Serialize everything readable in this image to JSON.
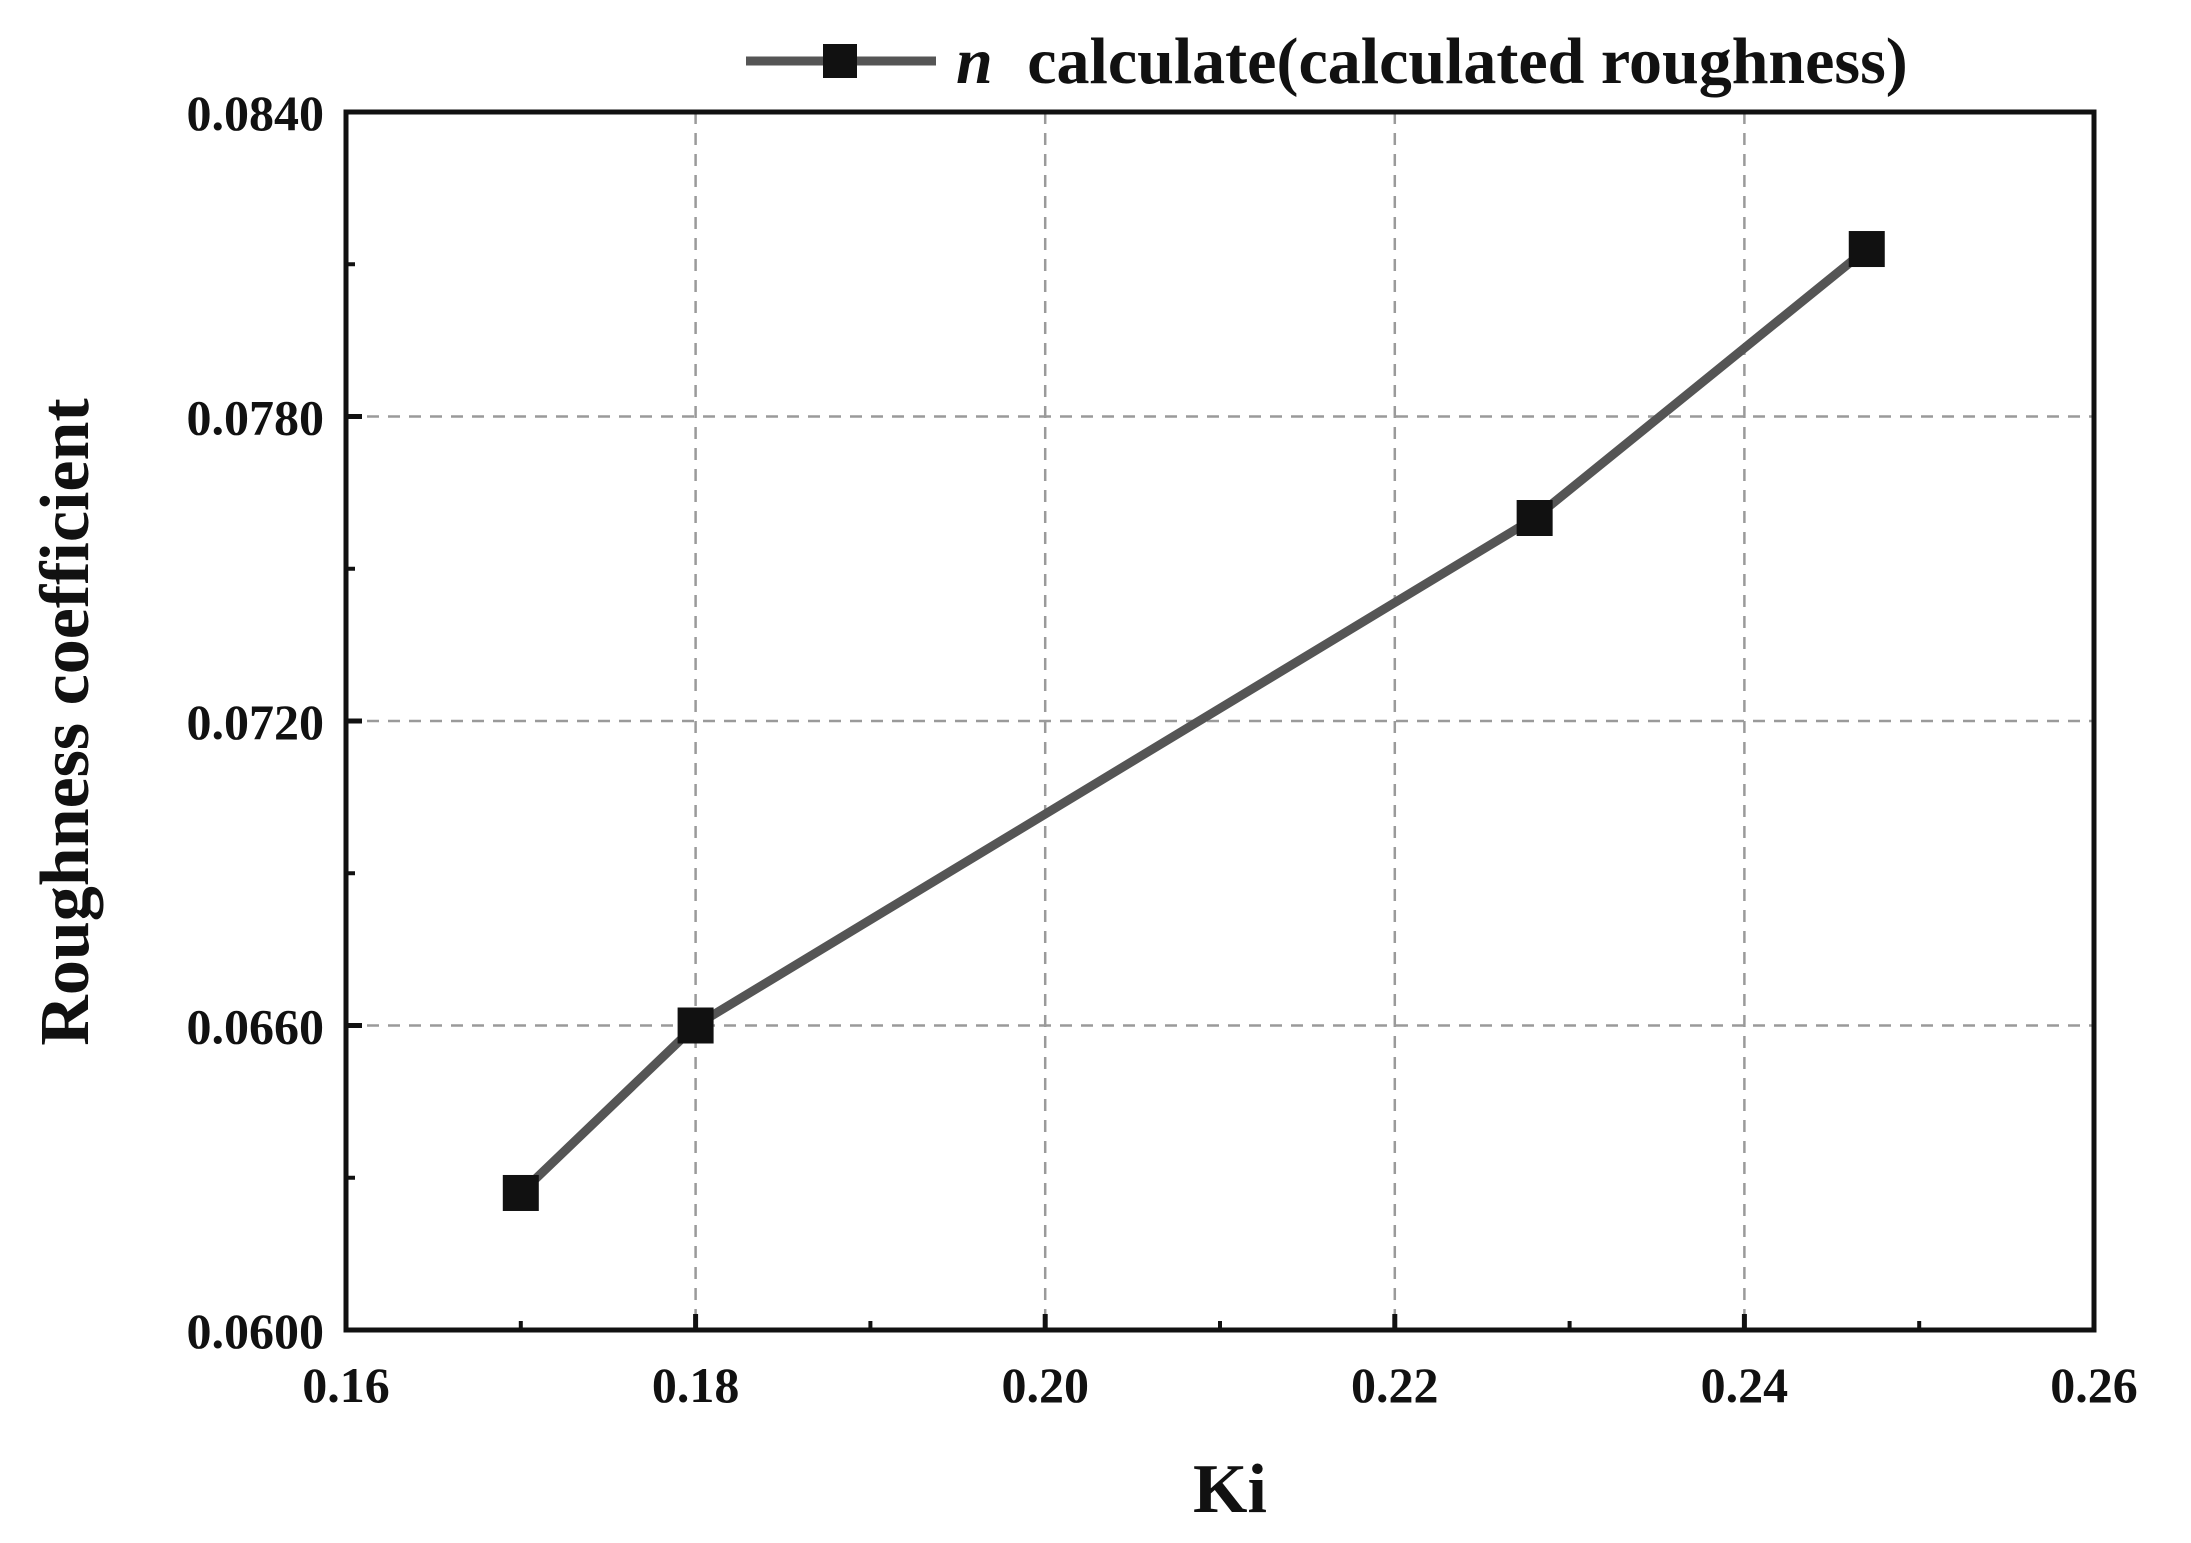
{
  "chart_data": {
    "type": "line",
    "xlabel": "Ki",
    "ylabel": "Roughness coefficient",
    "xlim": [
      0.16,
      0.26
    ],
    "ylim": [
      0.06,
      0.084
    ],
    "x_ticks": [
      "0.16",
      "0.18",
      "0.20",
      "0.22",
      "0.24",
      "0.26"
    ],
    "y_ticks": [
      "0.0600",
      "0.0660",
      "0.0720",
      "0.0780",
      "0.0840"
    ],
    "grid": true,
    "legend_position": "top-right",
    "series": [
      {
        "name": "calculate(calculated roughness)",
        "name_prefix": "n",
        "color": "#555555",
        "marker": "square",
        "x": [
          0.17,
          0.18,
          0.228,
          0.247
        ],
        "y": [
          0.0627,
          0.066,
          0.076,
          0.0813
        ]
      }
    ]
  }
}
